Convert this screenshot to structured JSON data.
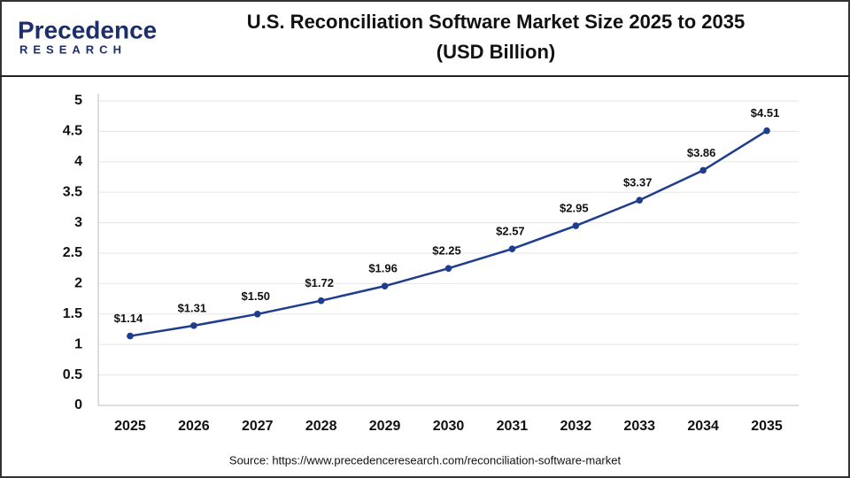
{
  "logo": {
    "name": "Precedence",
    "tagline": "RESEARCH"
  },
  "chart_data": {
    "type": "line",
    "title_lines": [
      "U.S. Reconciliation Software Market Size 2025 to 2035",
      "(USD Billion)"
    ],
    "source": "Source: https://www.precedenceresearch.com/reconciliation-software-market",
    "categories": [
      "2025",
      "2026",
      "2027",
      "2028",
      "2029",
      "2030",
      "2031",
      "2032",
      "2033",
      "2034",
      "2035"
    ],
    "values": [
      1.14,
      1.31,
      1.5,
      1.72,
      1.96,
      2.25,
      2.57,
      2.95,
      3.37,
      3.86,
      4.51
    ],
    "value_labels": [
      "$1.14",
      "$1.31",
      "$1.50",
      "$1.72",
      "$1.96",
      "$2.25",
      "$2.57",
      "$2.95",
      "$3.37",
      "$3.86",
      "$4.51"
    ],
    "color": "#1f3c8f",
    "ylim": [
      0,
      5
    ],
    "yticks": [
      0,
      0.5,
      1,
      1.5,
      2,
      2.5,
      3,
      3.5,
      4,
      4.5,
      5
    ],
    "grid": true
  }
}
